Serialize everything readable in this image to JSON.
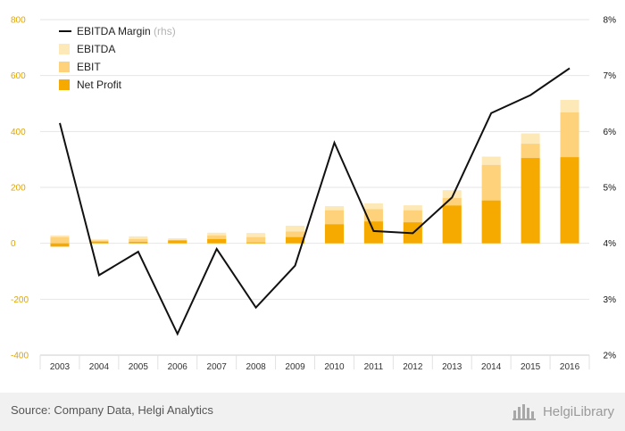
{
  "chart_data": {
    "type": "bar",
    "categories": [
      "2003",
      "2004",
      "2005",
      "2006",
      "2007",
      "2008",
      "2009",
      "2010",
      "2011",
      "2012",
      "2013",
      "2014",
      "2015",
      "2016"
    ],
    "series": [
      {
        "name": "EBITDA",
        "kind": "bar",
        "axis": "left",
        "color": "#fde8b8",
        "values": [
          28,
          14,
          25,
          18,
          38,
          37,
          63,
          133,
          143,
          136,
          190,
          310,
          393,
          513
        ]
      },
      {
        "name": "EBIT",
        "kind": "bar",
        "axis": "left",
        "color": "#fdd27a",
        "values": [
          22,
          10,
          15,
          12,
          28,
          22,
          42,
          118,
          122,
          118,
          162,
          280,
          356,
          468
        ]
      },
      {
        "name": "Net Profit",
        "kind": "bar",
        "axis": "left",
        "color": "#f6aa00",
        "values": [
          -12,
          6,
          5,
          10,
          15,
          3,
          22,
          68,
          78,
          75,
          135,
          153,
          305,
          308
        ]
      },
      {
        "name": "EBITDA Margin",
        "name_suffix": "(rhs)",
        "kind": "line",
        "axis": "right",
        "color": "#111111",
        "values": [
          6.15,
          3.43,
          3.85,
          2.38,
          3.9,
          2.85,
          3.6,
          5.8,
          4.22,
          4.18,
          4.82,
          6.33,
          6.65,
          7.13
        ]
      }
    ],
    "y_left": {
      "ylim": [
        -400,
        800
      ],
      "ticks": [
        -400,
        -200,
        0,
        200,
        400,
        600,
        800
      ],
      "color": "#e0a400"
    },
    "y_right": {
      "ylim": [
        2,
        8
      ],
      "ticks": [
        2,
        3,
        4,
        5,
        6,
        7,
        8
      ],
      "unit": "%"
    },
    "grid": true,
    "legend_position": "top-left"
  },
  "footer": {
    "source": "Source: Company Data, Helgi Analytics",
    "brand": "HelgiLibrary",
    "brand_icon": "helgi-library-logo-icon"
  }
}
